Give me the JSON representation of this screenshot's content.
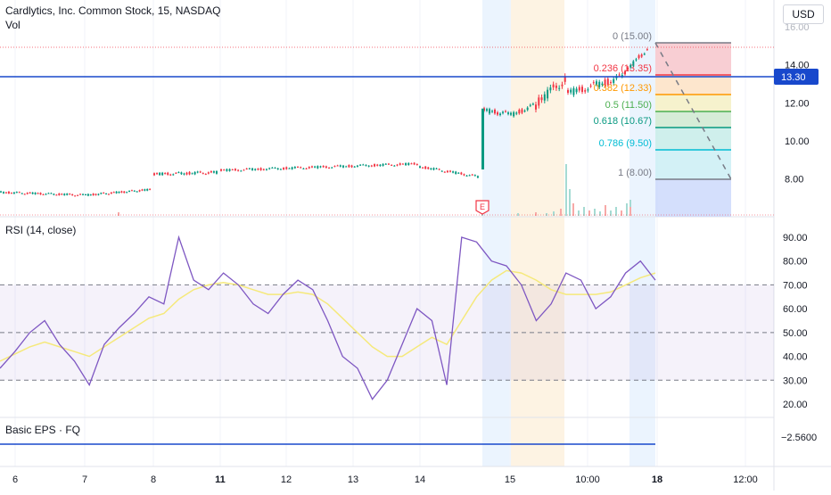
{
  "header": {
    "title": "Cardlytics, Inc. Common Stock, 15, NASDAQ",
    "vol_label": "Vol",
    "currency": "USD"
  },
  "colors": {
    "up": "#089981",
    "down": "#f23645",
    "blue_line": "#1848cc",
    "rsi_line": "#7e57c2",
    "rsi_ma": "#f5e97b",
    "fib_0": "#787b86",
    "fib_236": "#f23645",
    "fib_382": "#ff9800",
    "fib_5": "#4caf50",
    "fib_618": "#089981",
    "fib_786": "#00bcd4",
    "fib_1": "#787b86"
  },
  "price_axis": {
    "ticks": [
      "14.00",
      "12.00",
      "10.00",
      "8.00"
    ],
    "top_partial": "16.00",
    "current_price": "13.30"
  },
  "rsi_axis": {
    "ticks": [
      "90.00",
      "80.00",
      "70.00",
      "60.00",
      "50.00",
      "40.00",
      "30.00",
      "20.00"
    ]
  },
  "eps": {
    "label": "Basic EPS · FQ",
    "value": "−2.5600"
  },
  "time_axis": {
    "labels": [
      "6",
      "7",
      "8",
      "11",
      "12",
      "13",
      "14",
      "15",
      "10:00",
      "18",
      "12:00"
    ]
  },
  "earnings_marker": "E",
  "rsi": {
    "label": "RSI (14, close)"
  },
  "chart_data": {
    "type": "line",
    "series_price": {
      "levels": [
        {
          "day": "6",
          "price": 7.3
        },
        {
          "day": "7",
          "price": 7.1
        },
        {
          "day": "8",
          "price": 7.45
        },
        {
          "day": "8",
          "price": 8.25
        },
        {
          "day": "11",
          "price": 8.45
        },
        {
          "day": "12",
          "price": 8.65
        },
        {
          "day": "13",
          "price": 8.8
        },
        {
          "day": "14",
          "price": 8.6
        },
        {
          "day": "14",
          "price": 8.1
        },
        {
          "day": "14",
          "price": 11.7
        },
        {
          "day": "15",
          "price": 11.35
        },
        {
          "day": "15",
          "price": 11.85
        },
        {
          "day": "15",
          "price": 13.8
        },
        {
          "day": "10:00",
          "price": 13.3
        },
        {
          "day": "18",
          "price": 15.0
        }
      ]
    },
    "horizontal_line": 13.3,
    "fibonacci": [
      {
        "ratio": "0",
        "value": "15.00",
        "price": 15.0
      },
      {
        "ratio": "0.236",
        "value": "13.35",
        "price": 13.35
      },
      {
        "ratio": "0.382",
        "value": "12.33",
        "price": 12.33
      },
      {
        "ratio": "0.5",
        "value": "11.50",
        "price": 11.5
      },
      {
        "ratio": "0.618",
        "value": "10.67",
        "price": 10.67
      },
      {
        "ratio": "0.786",
        "value": "9.50",
        "price": 9.5
      },
      {
        "ratio": "1",
        "value": "8.00",
        "price": 8.0
      }
    ],
    "rsi_values": [
      35,
      42,
      50,
      55,
      45,
      38,
      28,
      45,
      52,
      58,
      65,
      62,
      90,
      72,
      68,
      75,
      70,
      62,
      58,
      66,
      72,
      68,
      55,
      40,
      35,
      22,
      30,
      45,
      60,
      55,
      28,
      90,
      88,
      80,
      78,
      70,
      55,
      62,
      75,
      72,
      60,
      65,
      75,
      80,
      72
    ],
    "rsi_ma_values": [
      38,
      41,
      44,
      46,
      44,
      42,
      40,
      44,
      48,
      52,
      56,
      58,
      64,
      68,
      70,
      71,
      70,
      68,
      66,
      66,
      67,
      66,
      62,
      56,
      50,
      44,
      40,
      40,
      44,
      48,
      45,
      55,
      65,
      72,
      76,
      75,
      72,
      68,
      66,
      66,
      66,
      67,
      70,
      73,
      75
    ],
    "rsi_levels": [
      70,
      50,
      30
    ],
    "ylim_price": [
      7.0,
      16.0
    ],
    "ylim_rsi": [
      15,
      95
    ]
  }
}
